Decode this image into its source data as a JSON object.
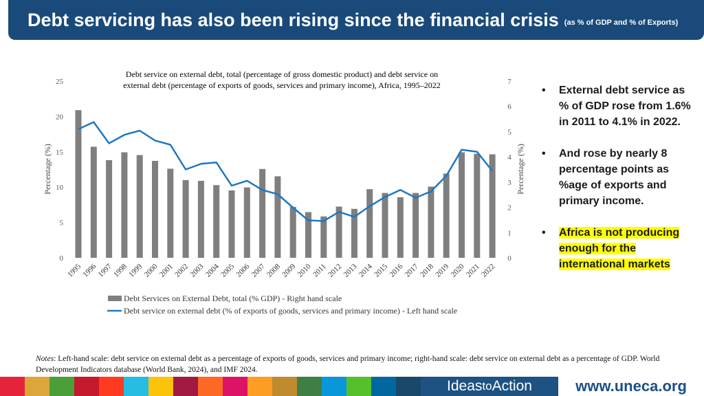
{
  "header": {
    "title": "Debt servicing has also been rising since the financial crisis",
    "subtitle": "(as % of GDP and % of Exports)"
  },
  "chart_data": {
    "type": "bar+line",
    "title_line1": "Debt service on external debt, total (percentage of gross domestic product) and debt service on",
    "title_line2": "external debt (percentage of exports of goods, services and primary income), Africa, 1995–2022",
    "categories": [
      "1995",
      "1996",
      "1997",
      "1998",
      "1999",
      "2000",
      "2001",
      "2002",
      "2003",
      "2004",
      "2005",
      "2006",
      "2007",
      "2008",
      "2009",
      "2010",
      "2011",
      "2012",
      "2013",
      "2014",
      "2015",
      "2016",
      "2017",
      "2018",
      "2019",
      "2020",
      "2021",
      "2022"
    ],
    "series": [
      {
        "name": "Debt Services on External Debt, total (% GDP) - Right hand scale",
        "type": "bar",
        "axis": "right",
        "color": "#7f7f7f",
        "values": [
          5.85,
          4.4,
          3.87,
          4.18,
          4.07,
          3.84,
          3.53,
          3.08,
          3.05,
          2.88,
          2.67,
          2.79,
          3.52,
          3.23,
          2.02,
          1.81,
          1.64,
          2.03,
          1.94,
          2.72,
          2.57,
          2.4,
          2.57,
          2.82,
          3.34,
          4.18,
          4.12,
          4.1
        ]
      },
      {
        "name": "Debt service on external debt (% of exports of goods, services and primary income) - Left hand scale",
        "type": "line",
        "axis": "left",
        "color": "#1f78c1",
        "values": [
          18.2,
          19.2,
          16.2,
          17.4,
          18.0,
          16.6,
          16.0,
          12.5,
          13.3,
          13.5,
          10.2,
          10.9,
          9.6,
          9.0,
          7.1,
          5.3,
          5.2,
          6.5,
          5.8,
          7.3,
          8.6,
          9.6,
          8.5,
          9.4,
          11.6,
          15.3,
          15.0,
          12.3
        ]
      }
    ],
    "ylim_left": [
      0,
      25
    ],
    "yticks_left": [
      0,
      5,
      10,
      15,
      20,
      25
    ],
    "ylim_right": [
      0,
      7
    ],
    "yticks_right": [
      0,
      1,
      2,
      3,
      4,
      5,
      6,
      7
    ],
    "ylabel_left": "Percentage (%)",
    "ylabel_right": "Percentage (%)",
    "grid": false,
    "legend_position": "bottom"
  },
  "bullets": {
    "item1": "External debt service as % of GDP rose from 1.6% in 2011 to 4.1% in 2022.",
    "item2": "And rose by nearly 8 percentage points as %age of exports and primary income.",
    "item3": "Africa is not producing enough for the international markets",
    "marker": "•"
  },
  "notes": {
    "label": "Notes",
    "text": ": Left-hand scale: debt service on external debt as a percentage of exports of goods, services and primary income; right-hand scale: debt service on external debt as a percentage of GDP.   World Development Indicators database (World Bank, 2024), and IMF 2024."
  },
  "footer": {
    "brand_part1": "Ideas",
    "brand_part2": "to",
    "brand_part3": "Action",
    "website": "www.uneca.org",
    "stripe_colors": [
      "#e5243b",
      "#dda63a",
      "#4c9f38",
      "#c5192d",
      "#ff3a21",
      "#26bde2",
      "#fcc30b",
      "#a21942",
      "#fd6925",
      "#dd1367",
      "#fd9d24",
      "#bf8b2e",
      "#3f7e44",
      "#0a97d9",
      "#56c02b",
      "#00689d",
      "#19486a"
    ]
  }
}
